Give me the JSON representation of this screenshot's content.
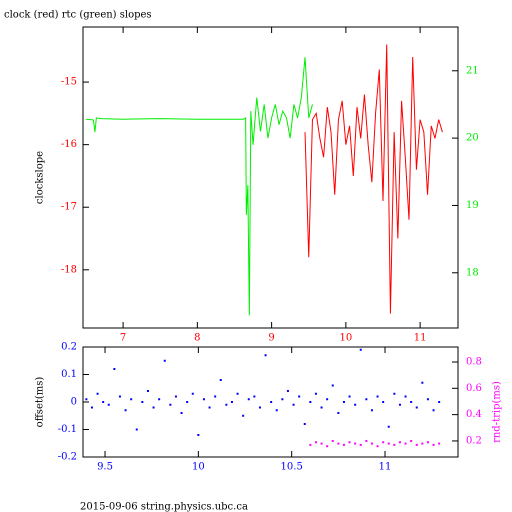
{
  "chart_data": [
    {
      "type": "line",
      "title": "clock (red) rtc (green) slopes",
      "ylabel": "clockslope",
      "xlim": [
        6.46,
        11.51
      ],
      "xticks": [
        7,
        8,
        9,
        10,
        11
      ],
      "ylim": [
        -18.93,
        -14.12
      ],
      "yticks": [
        -15,
        -16,
        -17,
        -18
      ],
      "y2lim": [
        17.18,
        21.65
      ],
      "y2ticks": [
        18,
        19,
        20,
        21
      ],
      "series": [
        {
          "color": "#ff0000",
          "axis": "y",
          "x": [
            9.45,
            9.5,
            9.55,
            9.6,
            9.65,
            9.7,
            9.75,
            9.8,
            9.85,
            9.9,
            9.95,
            10.0,
            10.05,
            10.1,
            10.15,
            10.2,
            10.25,
            10.3,
            10.35,
            10.4,
            10.45,
            10.5,
            10.55,
            10.6,
            10.65,
            10.7,
            10.75,
            10.8,
            10.85,
            10.9,
            10.95,
            11.0,
            11.05,
            11.1,
            11.15,
            11.2,
            11.25,
            11.3
          ],
          "values": [
            -15.8,
            -17.8,
            -15.6,
            -15.5,
            -15.9,
            -16.2,
            -15.4,
            -15.8,
            -16.8,
            -15.6,
            -15.3,
            -16.0,
            -15.7,
            -16.5,
            -15.4,
            -15.9,
            -15.2,
            -16.0,
            -16.6,
            -15.5,
            -14.8,
            -16.9,
            -14.4,
            -18.7,
            -15.8,
            -17.5,
            -15.3,
            -16.2,
            -17.2,
            -14.6,
            -16.4,
            -15.6,
            -15.8,
            -16.8,
            -15.7,
            -15.9,
            -15.6,
            -15.8
          ]
        },
        {
          "color": "#00ee00",
          "axis": "y2",
          "x": [
            6.5,
            6.6,
            6.62,
            6.64,
            6.7,
            7.0,
            7.5,
            8.0,
            8.5,
            8.62,
            8.65,
            8.66,
            8.68,
            8.7,
            8.72,
            8.75,
            8.8,
            8.85,
            8.9,
            8.95,
            9.0,
            9.05,
            9.1,
            9.15,
            9.2,
            9.25,
            9.3,
            9.35,
            9.4,
            9.45,
            9.5,
            9.55
          ],
          "values": [
            20.28,
            20.27,
            20.09,
            20.3,
            20.29,
            20.28,
            20.29,
            20.28,
            20.28,
            20.28,
            20.3,
            18.86,
            19.3,
            17.37,
            20.4,
            19.9,
            20.6,
            20.1,
            20.5,
            20.0,
            20.3,
            20.5,
            20.2,
            20.4,
            20.3,
            20.0,
            20.5,
            20.3,
            20.6,
            21.2,
            20.3,
            20.5
          ]
        }
      ]
    },
    {
      "type": "scatter",
      "ylabel": "offset(ms)",
      "y2label": "rnd-trip(ms)",
      "annotation": "2015-09-06 string.physics.ubc.ca",
      "xlim": [
        9.382,
        11.391
      ],
      "xticks": [
        9.5,
        10,
        10.5,
        11
      ],
      "ylim": [
        -0.2,
        0.2
      ],
      "yticks": [
        0.2,
        0.1,
        0,
        -0.1,
        -0.2
      ],
      "y2lim": [
        0.078,
        0.914
      ],
      "y2ticks": [
        0.2,
        0.4,
        0.6,
        0.8
      ],
      "series": [
        {
          "color": "#0000ff",
          "axis": "y",
          "x": [
            9.4,
            9.43,
            9.46,
            9.49,
            9.52,
            9.55,
            9.58,
            9.61,
            9.64,
            9.67,
            9.7,
            9.73,
            9.76,
            9.79,
            9.82,
            9.85,
            9.88,
            9.91,
            9.94,
            9.97,
            10.0,
            10.03,
            10.06,
            10.09,
            10.12,
            10.15,
            10.18,
            10.21,
            10.24,
            10.27,
            10.3,
            10.33,
            10.36,
            10.39,
            10.42,
            10.45,
            10.48,
            10.51,
            10.54,
            10.57,
            10.6,
            10.63,
            10.66,
            10.69,
            10.72,
            10.75,
            10.78,
            10.81,
            10.84,
            10.87,
            10.9,
            10.93,
            10.96,
            10.99,
            11.02,
            11.05,
            11.08,
            11.11,
            11.14,
            11.17,
            11.2,
            11.23,
            11.26,
            11.29
          ],
          "values": [
            0.01,
            -0.02,
            0.03,
            0.0,
            -0.01,
            0.12,
            0.02,
            -0.03,
            0.01,
            -0.1,
            0.0,
            0.04,
            -0.02,
            0.01,
            0.15,
            -0.01,
            0.02,
            -0.04,
            0.0,
            0.03,
            -0.12,
            0.01,
            -0.02,
            0.02,
            0.08,
            -0.01,
            0.0,
            0.03,
            -0.05,
            0.01,
            0.02,
            -0.02,
            0.17,
            0.0,
            -0.03,
            0.01,
            0.04,
            -0.01,
            0.02,
            -0.08,
            0.0,
            0.03,
            -0.02,
            0.01,
            0.06,
            -0.04,
            0.0,
            0.02,
            -0.01,
            0.19,
            0.01,
            -0.03,
            0.02,
            0.0,
            -0.09,
            0.03,
            -0.01,
            0.02,
            0.0,
            -0.02,
            0.07,
            0.01,
            -0.03,
            0.0
          ]
        },
        {
          "color": "#ff00ff",
          "axis": "y2",
          "x": [
            10.6,
            10.63,
            10.66,
            10.69,
            10.72,
            10.75,
            10.78,
            10.81,
            10.84,
            10.87,
            10.9,
            10.93,
            10.96,
            10.99,
            11.02,
            11.05,
            11.08,
            11.11,
            11.14,
            11.17,
            11.2,
            11.23,
            11.26,
            11.29
          ],
          "values": [
            0.17,
            0.19,
            0.18,
            0.16,
            0.2,
            0.18,
            0.17,
            0.19,
            0.18,
            0.17,
            0.2,
            0.18,
            0.16,
            0.19,
            0.18,
            0.17,
            0.19,
            0.18,
            0.2,
            0.17,
            0.18,
            0.19,
            0.17,
            0.18
          ]
        }
      ]
    }
  ]
}
